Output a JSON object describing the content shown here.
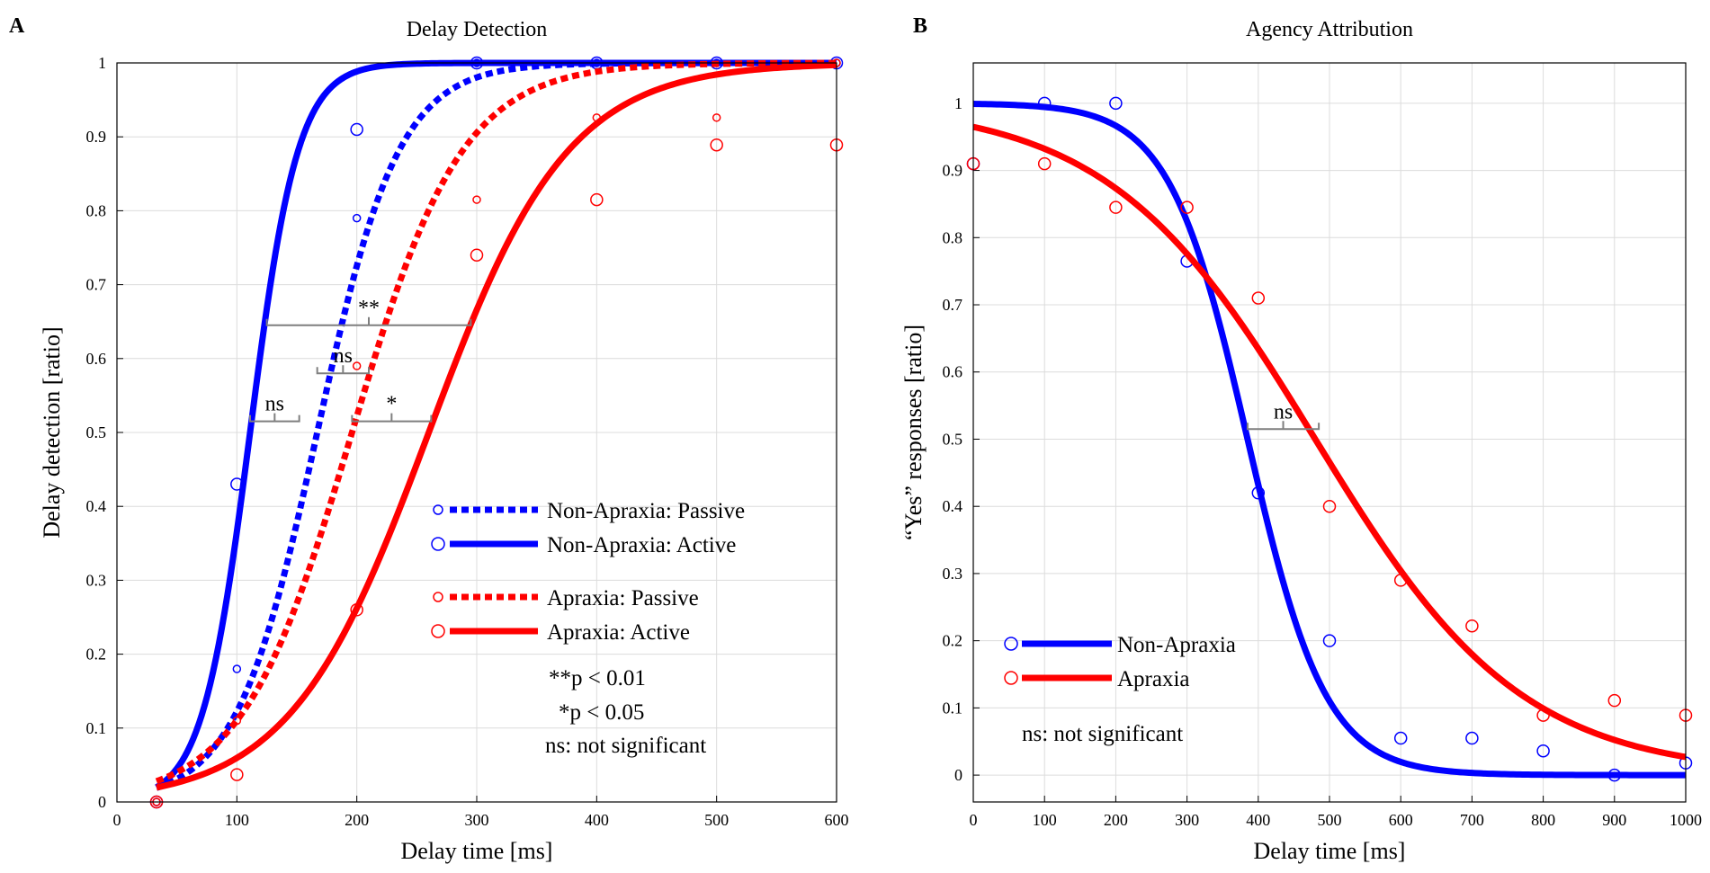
{
  "panels": {
    "a": {
      "label": "A"
    },
    "b": {
      "label": "B"
    }
  },
  "colors": {
    "non_apraxia": "#0000ff",
    "apraxia": "#ff0000",
    "grid": "#dcdcdc",
    "bracket": "#7f7f7f"
  },
  "chart_data": [
    {
      "type": "line",
      "title": "Delay Detection",
      "xlabel": "Delay time [ms]",
      "ylabel": "Delay detection [ratio]",
      "xlim": [
        0,
        600
      ],
      "ylim": [
        0,
        1
      ],
      "xticks": [
        0,
        100,
        200,
        300,
        400,
        500,
        600
      ],
      "yticks": [
        0,
        0.1,
        0.2,
        0.3,
        0.4,
        0.5,
        0.6,
        0.7,
        0.8,
        0.9,
        1
      ],
      "grid": true,
      "legend_position": "lower-right",
      "series": [
        {
          "name": "Non-Apraxia: Passive",
          "color": "#0000ff",
          "style": "dotted",
          "marker": "small-circle",
          "fit": {
            "type": "logistic",
            "midpoint": 167,
            "slope": 34,
            "x_range": [
              33,
              600
            ]
          },
          "points": [
            {
              "x": 33,
              "y": 0.0
            },
            {
              "x": 100,
              "y": 0.18
            },
            {
              "x": 200,
              "y": 0.79
            },
            {
              "x": 300,
              "y": 1.0
            },
            {
              "x": 400,
              "y": 1.0
            },
            {
              "x": 500,
              "y": 1.0
            },
            {
              "x": 600,
              "y": 1.0
            }
          ]
        },
        {
          "name": "Non-Apraxia: Active",
          "color": "#0000ff",
          "style": "solid",
          "marker": "circle",
          "fit": {
            "type": "logistic",
            "midpoint": 111,
            "slope": 20,
            "x_range": [
              33,
              600
            ]
          },
          "points": [
            {
              "x": 33,
              "y": 0.0
            },
            {
              "x": 100,
              "y": 0.43
            },
            {
              "x": 200,
              "y": 0.91
            },
            {
              "x": 300,
              "y": 1.0
            },
            {
              "x": 400,
              "y": 1.0
            },
            {
              "x": 500,
              "y": 1.0
            },
            {
              "x": 600,
              "y": 1.0
            }
          ]
        },
        {
          "name": "Apraxia: Passive",
          "color": "#ff0000",
          "style": "dotted",
          "marker": "small-circle",
          "fit": {
            "type": "logistic",
            "midpoint": 196,
            "slope": 46,
            "x_range": [
              33,
              600
            ]
          },
          "points": [
            {
              "x": 33,
              "y": 0.0
            },
            {
              "x": 100,
              "y": 0.11
            },
            {
              "x": 200,
              "y": 0.59
            },
            {
              "x": 300,
              "y": 0.815
            },
            {
              "x": 400,
              "y": 0.926
            },
            {
              "x": 500,
              "y": 0.926
            },
            {
              "x": 600,
              "y": 1.0
            }
          ]
        },
        {
          "name": "Apraxia: Active",
          "color": "#ff0000",
          "style": "solid",
          "marker": "circle",
          "fit": {
            "type": "logistic",
            "midpoint": 260,
            "slope": 58,
            "x_range": [
              33,
              600
            ]
          },
          "points": [
            {
              "x": 33,
              "y": 0.0
            },
            {
              "x": 100,
              "y": 0.037
            },
            {
              "x": 200,
              "y": 0.26
            },
            {
              "x": 300,
              "y": 0.74
            },
            {
              "x": 400,
              "y": 0.815
            },
            {
              "x": 500,
              "y": 0.889
            },
            {
              "x": 600,
              "y": 0.889
            }
          ]
        }
      ],
      "significance": [
        {
          "label": "**",
          "x1": 125,
          "x2": 295,
          "y": 0.645
        },
        {
          "label": "ns",
          "x1": 167,
          "x2": 210,
          "y": 0.58
        },
        {
          "label": "ns",
          "x1": 111,
          "x2": 152,
          "y": 0.515
        },
        {
          "label": "*",
          "x1": 196,
          "x2": 262,
          "y": 0.515
        }
      ],
      "notes": [
        "**p < 0.01",
        "*p < 0.05",
        "ns: not significant"
      ]
    },
    {
      "type": "line",
      "title": "Agency Attribution",
      "xlabel": "Delay time [ms]",
      "ylabel": "“Yes” responses [ratio]",
      "xlim": [
        0,
        1000
      ],
      "ylim": [
        -0.04,
        1.06
      ],
      "xticks": [
        0,
        100,
        200,
        300,
        400,
        500,
        600,
        700,
        800,
        900,
        1000
      ],
      "yticks": [
        0,
        0.1,
        0.2,
        0.3,
        0.4,
        0.5,
        0.6,
        0.7,
        0.8,
        0.9,
        1
      ],
      "grid": true,
      "legend_position": "lower-left",
      "series": [
        {
          "name": "Non-Apraxia",
          "color": "#0000ff",
          "style": "solid",
          "marker": "circle",
          "fit": {
            "type": "logistic-decreasing",
            "midpoint": 385,
            "slope": 55,
            "x_range": [
              0,
              1000
            ]
          },
          "points": [
            {
              "x": 0,
              "y": 0.91
            },
            {
              "x": 100,
              "y": 1.0
            },
            {
              "x": 200,
              "y": 1.0
            },
            {
              "x": 300,
              "y": 0.765
            },
            {
              "x": 400,
              "y": 0.42
            },
            {
              "x": 500,
              "y": 0.2
            },
            {
              "x": 600,
              "y": 0.055
            },
            {
              "x": 700,
              "y": 0.055
            },
            {
              "x": 800,
              "y": 0.036
            },
            {
              "x": 900,
              "y": 0.0
            },
            {
              "x": 1000,
              "y": 0.018
            }
          ]
        },
        {
          "name": "Apraxia",
          "color": "#ff0000",
          "style": "solid",
          "marker": "circle",
          "fit": {
            "type": "logistic-decreasing",
            "midpoint": 480,
            "slope": 145,
            "x_range": [
              0,
              1000
            ]
          },
          "points": [
            {
              "x": 0,
              "y": 0.91
            },
            {
              "x": 100,
              "y": 0.91
            },
            {
              "x": 200,
              "y": 0.845
            },
            {
              "x": 300,
              "y": 0.845
            },
            {
              "x": 400,
              "y": 0.71
            },
            {
              "x": 500,
              "y": 0.4
            },
            {
              "x": 600,
              "y": 0.29
            },
            {
              "x": 700,
              "y": 0.222
            },
            {
              "x": 800,
              "y": 0.089
            },
            {
              "x": 900,
              "y": 0.111
            },
            {
              "x": 1000,
              "y": 0.089
            }
          ]
        }
      ],
      "significance": [
        {
          "label": "ns",
          "x1": 385,
          "x2": 485,
          "y": 0.515
        }
      ],
      "notes": [
        "ns: not significant"
      ]
    }
  ]
}
